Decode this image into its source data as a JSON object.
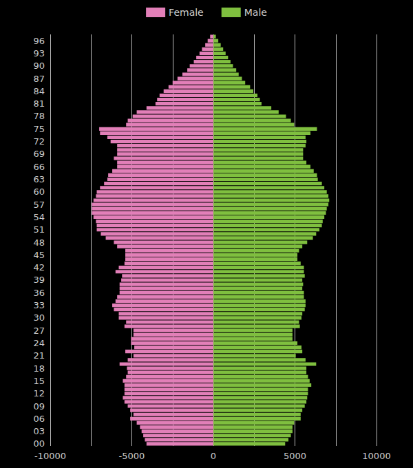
{
  "chart_data": {
    "type": "bar",
    "orientation": "horizontal",
    "categories": [
      "00",
      null,
      null,
      "03",
      null,
      null,
      "06",
      null,
      null,
      "09",
      null,
      null,
      "12",
      null,
      null,
      "15",
      null,
      null,
      "18",
      null,
      null,
      "21",
      null,
      null,
      "24",
      null,
      null,
      "27",
      null,
      null,
      "30",
      null,
      null,
      "33",
      null,
      null,
      "36",
      null,
      null,
      "39",
      null,
      null,
      "42",
      null,
      null,
      "45",
      null,
      null,
      "48",
      null,
      null,
      "51",
      null,
      null,
      "54",
      null,
      null,
      "57",
      null,
      null,
      "60",
      null,
      null,
      "63",
      null,
      null,
      "66",
      null,
      null,
      "69",
      null,
      null,
      "72",
      null,
      null,
      "75",
      null,
      null,
      "78",
      null,
      null,
      "81",
      null,
      null,
      "84",
      null,
      null,
      "87",
      null,
      null,
      "90",
      null,
      null,
      "93",
      null,
      null,
      "96",
      null
    ],
    "series": [
      {
        "name": "Female",
        "color": "#e27fb8",
        "values": [
          -4100,
          -4200,
          -4300,
          -4400,
          -4500,
          -4700,
          -5100,
          -4900,
          -5100,
          -5250,
          -5450,
          -5550,
          -5450,
          -5450,
          -5450,
          -5550,
          -5350,
          -5250,
          -5300,
          -5750,
          -5250,
          -4900,
          -5400,
          -4850,
          -5050,
          -5050,
          -4900,
          -4900,
          -5450,
          -5350,
          -5800,
          -5800,
          -6100,
          -6200,
          -6000,
          -5900,
          -5750,
          -5750,
          -5750,
          -5650,
          -5600,
          -6000,
          -5800,
          -5450,
          -5400,
          -5400,
          -5400,
          -5900,
          -6100,
          -6600,
          -6900,
          -7150,
          -7150,
          -7200,
          -7350,
          -7450,
          -7450,
          -7450,
          -7350,
          -7200,
          -7150,
          -6950,
          -6700,
          -6500,
          -6450,
          -6200,
          -5900,
          -5900,
          -6100,
          -5900,
          -5900,
          -5900,
          -6300,
          -6500,
          -6950,
          -7000,
          -5350,
          -5250,
          -4950,
          -4700,
          -4100,
          -3550,
          -3450,
          -3300,
          -3050,
          -2750,
          -2500,
          -2200,
          -1900,
          -1600,
          -1450,
          -1200,
          -1050,
          -850,
          -700,
          -500,
          -350,
          -200
        ]
      },
      {
        "name": "Male",
        "color": "#7fbf3f",
        "values": [
          4400,
          4600,
          4750,
          4850,
          4850,
          4950,
          5350,
          5350,
          5450,
          5600,
          5700,
          5750,
          5800,
          5800,
          6000,
          5900,
          5800,
          5700,
          5700,
          6300,
          5650,
          5050,
          5450,
          5400,
          5150,
          4850,
          4850,
          4850,
          5300,
          5250,
          5400,
          5450,
          5600,
          5650,
          5650,
          5550,
          5550,
          5450,
          5500,
          5450,
          5600,
          5550,
          5550,
          5350,
          5150,
          5150,
          5250,
          5450,
          5750,
          6100,
          6300,
          6500,
          6650,
          6700,
          6800,
          6900,
          6950,
          7050,
          7100,
          7050,
          6950,
          6800,
          6650,
          6400,
          6350,
          6150,
          5950,
          5700,
          5500,
          5500,
          5500,
          5650,
          5700,
          5650,
          5950,
          6350,
          4950,
          4750,
          4450,
          4000,
          3550,
          2950,
          2850,
          2700,
          2450,
          2250,
          1950,
          1750,
          1550,
          1400,
          1200,
          1050,
          900,
          750,
          600,
          450,
          300,
          150
        ]
      }
    ],
    "xlim": [
      -10000,
      10000
    ],
    "xticks": [
      -10000,
      -5000,
      0,
      5000,
      10000
    ],
    "grid": true,
    "legend": "top"
  }
}
